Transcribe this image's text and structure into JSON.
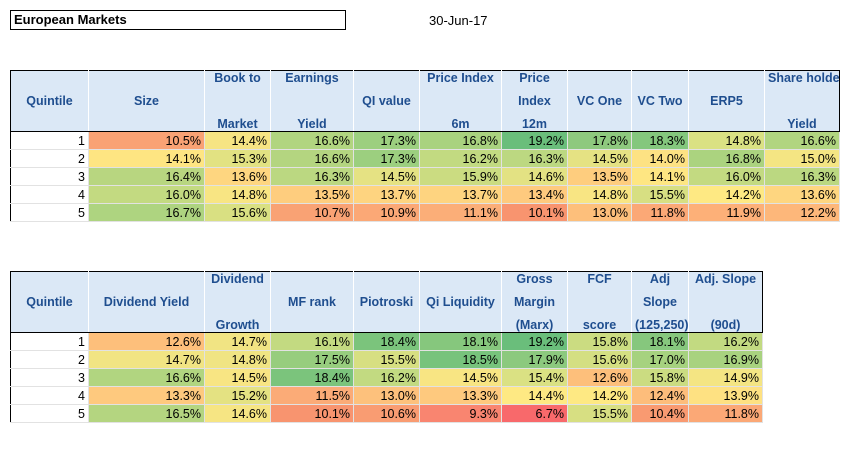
{
  "header": {
    "title": "European Markets",
    "date": "30-Jun-17"
  },
  "tables": [
    {
      "columns": [
        {
          "top": "",
          "mid": "Quintile",
          "bot": ""
        },
        {
          "top": "",
          "mid": "Size",
          "bot": ""
        },
        {
          "top": "Book to",
          "mid": "",
          "bot": "Market"
        },
        {
          "top": "Earnings",
          "mid": "",
          "bot": "Yield"
        },
        {
          "top": "",
          "mid": "QI value",
          "bot": ""
        },
        {
          "top": "Price Index",
          "mid": "",
          "bot": "6m"
        },
        {
          "top": "Price",
          "mid": "Index",
          "bot": "12m"
        },
        {
          "top": "",
          "mid": "VC One",
          "bot": ""
        },
        {
          "top": "",
          "mid": "VC Two",
          "bot": ""
        },
        {
          "top": "",
          "mid": "ERP5",
          "bot": ""
        },
        {
          "top": "Share holder",
          "mid": "",
          "bot": "Yield"
        }
      ],
      "rows": [
        {
          "q": "1",
          "values": [
            "10.5%",
            "14.4%",
            "16.6%",
            "17.3%",
            "16.8%",
            "19.2%",
            "17.8%",
            "18.3%",
            "14.8%",
            "16.6%"
          ],
          "colors": [
            "#f9a274",
            "#f6e483",
            "#b1d580",
            "#9ccf7f",
            "#a9d27f",
            "#6abe7b",
            "#8ec97e",
            "#84c77d",
            "#dae183",
            "#b1d580"
          ]
        },
        {
          "q": "2",
          "values": [
            "14.1%",
            "15.3%",
            "16.6%",
            "17.3%",
            "16.2%",
            "16.3%",
            "14.5%",
            "14.0%",
            "16.8%",
            "15.0%"
          ],
          "colors": [
            "#fee582",
            "#e2e282",
            "#b4d580",
            "#9ccf7f",
            "#c2da81",
            "#bcd881",
            "#e5e283",
            "#fde283",
            "#abd37f",
            "#f4e583"
          ]
        },
        {
          "q": "3",
          "values": [
            "16.4%",
            "13.6%",
            "16.3%",
            "14.5%",
            "15.9%",
            "14.6%",
            "13.5%",
            "14.1%",
            "16.0%",
            "16.3%"
          ],
          "colors": [
            "#b8d680",
            "#fed680",
            "#bbd881",
            "#e5e283",
            "#cbdc81",
            "#e3e283",
            "#fecd7e",
            "#fee682",
            "#c3da81",
            "#bbd881"
          ]
        },
        {
          "q": "4",
          "values": [
            "16.0%",
            "14.8%",
            "13.5%",
            "13.7%",
            "13.7%",
            "13.4%",
            "14.8%",
            "15.5%",
            "14.2%",
            "13.6%"
          ],
          "colors": [
            "#c3da81",
            "#f8e583",
            "#fecd7e",
            "#fed480",
            "#fed480",
            "#feca7e",
            "#f8e583",
            "#d7df82",
            "#fee983",
            "#fed680"
          ]
        },
        {
          "q": "5",
          "values": [
            "16.7%",
            "15.6%",
            "10.7%",
            "10.9%",
            "11.1%",
            "10.1%",
            "13.0%",
            "11.8%",
            "11.9%",
            "12.2%"
          ],
          "colors": [
            "#aed480",
            "#d9e082",
            "#f9a274",
            "#fba876",
            "#fbae78",
            "#f8946f",
            "#fdbf7b",
            "#fba876",
            "#fdb078",
            "#fdb77a"
          ]
        }
      ]
    },
    {
      "columns": [
        {
          "top": "",
          "mid": "Quintile",
          "bot": ""
        },
        {
          "top": "",
          "mid": "Dividend Yield",
          "bot": ""
        },
        {
          "top": "Dividend",
          "mid": "",
          "bot": "Growth"
        },
        {
          "top": "",
          "mid": "MF rank",
          "bot": ""
        },
        {
          "top": "",
          "mid": "Piotroski",
          "bot": ""
        },
        {
          "top": "",
          "mid": "Qi Liquidity",
          "bot": ""
        },
        {
          "top": "Gross",
          "mid": "Margin",
          "bot": "(Marx)"
        },
        {
          "top": "FCF",
          "mid": "",
          "bot": "score"
        },
        {
          "top": "Adj",
          "mid": "Slope",
          "bot": "(125,250)"
        },
        {
          "top": "Adj. Slope",
          "mid": "",
          "bot": "(90d)"
        }
      ],
      "rows": [
        {
          "q": "1",
          "values": [
            "12.6%",
            "14.7%",
            "16.1%",
            "18.4%",
            "18.1%",
            "19.2%",
            "15.8%",
            "18.1%",
            "16.2%"
          ],
          "colors": [
            "#fdbf7b",
            "#f1e483",
            "#c3da81",
            "#7bc47c",
            "#86c77d",
            "#6abe7b",
            "#cbdc81",
            "#86c77d",
            "#c2da81"
          ]
        },
        {
          "q": "2",
          "values": [
            "14.7%",
            "14.8%",
            "17.5%",
            "15.5%",
            "18.5%",
            "17.9%",
            "15.6%",
            "17.0%",
            "16.9%"
          ],
          "colors": [
            "#f1e483",
            "#f0e483",
            "#97cd7e",
            "#d7df82",
            "#77c37c",
            "#8cc97e",
            "#d4df82",
            "#a6d27f",
            "#a8d27f"
          ]
        },
        {
          "q": "3",
          "values": [
            "16.6%",
            "14.5%",
            "18.4%",
            "16.2%",
            "14.5%",
            "15.4%",
            "12.6%",
            "15.8%",
            "14.9%"
          ],
          "colors": [
            "#b1d580",
            "#f8e583",
            "#7bc47c",
            "#c2da81",
            "#f8e583",
            "#dae183",
            "#fdbf7b",
            "#cbdc81",
            "#f4e583"
          ]
        },
        {
          "q": "4",
          "values": [
            "13.3%",
            "15.2%",
            "11.5%",
            "13.0%",
            "13.3%",
            "14.4%",
            "14.2%",
            "12.4%",
            "13.9%"
          ],
          "colors": [
            "#fec97e",
            "#e4e282",
            "#fbab77",
            "#fdc17c",
            "#fec97e",
            "#fee983",
            "#fee983",
            "#fdbd7b",
            "#fee182"
          ]
        },
        {
          "q": "5",
          "values": [
            "16.5%",
            "14.6%",
            "10.1%",
            "10.6%",
            "9.3%",
            "6.7%",
            "15.5%",
            "10.4%",
            "11.8%"
          ],
          "colors": [
            "#b4d580",
            "#f6e583",
            "#f8946f",
            "#f99c72",
            "#f98570",
            "#f8696b",
            "#d7df82",
            "#f99a71",
            "#fba876"
          ]
        }
      ]
    }
  ]
}
